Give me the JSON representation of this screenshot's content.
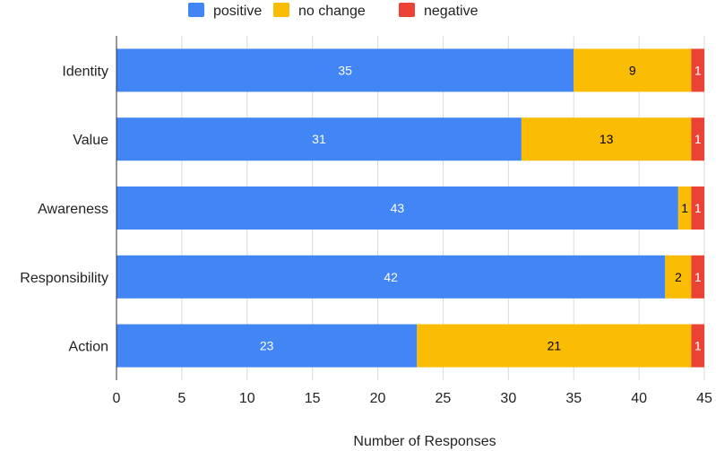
{
  "chart_data": {
    "type": "bar",
    "orientation": "horizontal",
    "stacked": true,
    "categories": [
      "Identity",
      "Value",
      "Awareness",
      "Responsibility",
      "Action"
    ],
    "series": [
      {
        "name": "positive",
        "color": "#4285f4",
        "label_color": "#ffffff",
        "values": [
          35,
          31,
          43,
          42,
          23
        ]
      },
      {
        "name": "no change",
        "color": "#fbbc04",
        "label_color": "#000000",
        "values": [
          9,
          13,
          1,
          2,
          21
        ]
      },
      {
        "name": "negative",
        "color": "#ea4335",
        "label_color": "#ffffff",
        "values": [
          1,
          1,
          1,
          1,
          1
        ]
      }
    ],
    "xlabel": "Number of Responses",
    "ylabel": "",
    "xlim": [
      0,
      45
    ],
    "xticks": [
      0,
      5,
      10,
      15,
      20,
      25,
      30,
      35,
      40,
      45
    ],
    "grid": true,
    "legend_position": "top-center"
  }
}
